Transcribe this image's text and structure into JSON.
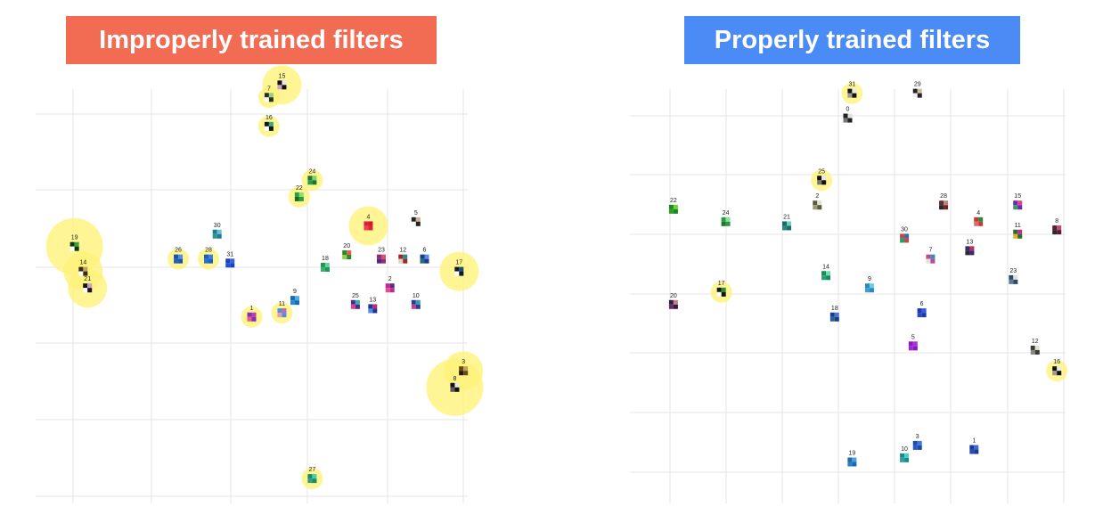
{
  "colors": {
    "banner_left": "#F26B53",
    "banner_right": "#4A8BF5",
    "highlight": "#FFF37A",
    "grid": "#E4E4E4"
  },
  "banners": {
    "left": "Improperly trained filters",
    "right": "Properly trained filters"
  },
  "chart_data": [
    {
      "type": "scatter",
      "title": "Improperly trained filters",
      "grid": true,
      "xlim": [
        0,
        100
      ],
      "ylim": [
        0,
        100
      ],
      "points": [
        {
          "label": "15",
          "x": 57,
          "y": 101,
          "highlight": 2,
          "colors": [
            "#111111",
            "#e8e8e8",
            "#d0a0c0"
          ]
        },
        {
          "label": "7",
          "x": 54,
          "y": 98,
          "highlight": 1,
          "colors": [
            "#223322",
            "#99cc88",
            "#ffffff"
          ]
        },
        {
          "label": "16",
          "x": 54,
          "y": 91,
          "highlight": 1,
          "colors": [
            "#0b1a1a",
            "#3aa880",
            "#ffffff"
          ]
        },
        {
          "label": "24",
          "x": 64,
          "y": 78,
          "highlight": 1,
          "colors": [
            "#1a7a2a",
            "#7ad46a",
            "#2a9a50"
          ]
        },
        {
          "label": "22",
          "x": 61,
          "y": 74,
          "highlight": 1,
          "colors": [
            "#2aa040",
            "#8fe070",
            "#1a6a2a"
          ]
        },
        {
          "label": "30",
          "x": 42,
          "y": 65,
          "highlight": 0,
          "colors": [
            "#1a7a9a",
            "#6ac0d0",
            "#2a9a80"
          ]
        },
        {
          "label": "4",
          "x": 77,
          "y": 67,
          "highlight": 2,
          "colors": [
            "#e0203a",
            "#d01a30",
            "#f04050"
          ]
        },
        {
          "label": "5",
          "x": 88,
          "y": 68,
          "highlight": 0,
          "colors": [
            "#222222",
            "#c8b090",
            "#ffffff"
          ]
        },
        {
          "label": "19",
          "x": 9,
          "y": 62,
          "highlight": 3,
          "colors": [
            "#0a3a10",
            "#3aa040",
            "#ffffff"
          ]
        },
        {
          "label": "14",
          "x": 11,
          "y": 56,
          "highlight": 2,
          "colors": [
            "#3a2a10",
            "#c0a060",
            "#ffffff"
          ]
        },
        {
          "label": "21",
          "x": 12,
          "y": 52,
          "highlight": 2,
          "colors": [
            "#220a22",
            "#c0a0c0",
            "#ffffff"
          ]
        },
        {
          "label": "26",
          "x": 33,
          "y": 59,
          "highlight": 1,
          "colors": [
            "#1a50b0",
            "#4a90e0",
            "#2060c0"
          ]
        },
        {
          "label": "28",
          "x": 40,
          "y": 59,
          "highlight": 1,
          "colors": [
            "#1a60c0",
            "#3a80e0",
            "#2a70d0"
          ]
        },
        {
          "label": "31",
          "x": 45,
          "y": 58,
          "highlight": 0,
          "colors": [
            "#1a40c0",
            "#3a60e0",
            "#2050d0"
          ]
        },
        {
          "label": "18",
          "x": 67,
          "y": 57,
          "highlight": 0,
          "colors": [
            "#1a9a50",
            "#6ad0a0",
            "#3ab070"
          ]
        },
        {
          "label": "20",
          "x": 72,
          "y": 60,
          "highlight": 0,
          "colors": [
            "#2a8a2a",
            "#e06040",
            "#90d050"
          ]
        },
        {
          "label": "23",
          "x": 80,
          "y": 59,
          "highlight": 0,
          "colors": [
            "#9a2a6a",
            "#d05080",
            "#4a2a8a"
          ]
        },
        {
          "label": "12",
          "x": 85,
          "y": 59,
          "highlight": 0,
          "colors": [
            "#9a2a2a",
            "#2a8a8a",
            "#e0d0c0"
          ]
        },
        {
          "label": "6",
          "x": 90,
          "y": 59,
          "highlight": 0,
          "colors": [
            "#1a3a9a",
            "#5a8ae0",
            "#2a6a6a"
          ]
        },
        {
          "label": "17",
          "x": 98,
          "y": 56,
          "highlight": 2,
          "colors": [
            "#0a1a2a",
            "#2a4a6a",
            "#ffffff"
          ]
        },
        {
          "label": "2",
          "x": 82,
          "y": 52,
          "highlight": 0,
          "colors": [
            "#c02a8a",
            "#5a2a8a",
            "#e05090"
          ]
        },
        {
          "label": "9",
          "x": 60,
          "y": 49,
          "highlight": 0,
          "colors": [
            "#1a6ab0",
            "#4ab0e0",
            "#2a8ac0"
          ]
        },
        {
          "label": "25",
          "x": 74,
          "y": 48,
          "highlight": 0,
          "colors": [
            "#4a2a9a",
            "#3ab0a0",
            "#e04080"
          ]
        },
        {
          "label": "13",
          "x": 78,
          "y": 47,
          "highlight": 0,
          "colors": [
            "#1a3a9a",
            "#c02a7a",
            "#5a8ae0"
          ]
        },
        {
          "label": "10",
          "x": 88,
          "y": 48,
          "highlight": 0,
          "colors": [
            "#2a3a9a",
            "#3a9ab0",
            "#c04090"
          ]
        },
        {
          "label": "1",
          "x": 50,
          "y": 45,
          "highlight": 1,
          "colors": [
            "#8a2ac0",
            "#c040a0",
            "#e06080"
          ]
        },
        {
          "label": "11",
          "x": 57,
          "y": 46,
          "highlight": 1,
          "colors": [
            "#5a8ae0",
            "#c06ab0",
            "#e0a0a0"
          ]
        },
        {
          "label": "3",
          "x": 99,
          "y": 32,
          "highlight": 2,
          "colors": [
            "#6a4a1a",
            "#c0a060",
            "#2a1a0a"
          ]
        },
        {
          "label": "8",
          "x": 97,
          "y": 28,
          "highlight": 3,
          "colors": [
            "#111111",
            "#e8e8e8",
            "#5a5a5a"
          ]
        },
        {
          "label": "27",
          "x": 64,
          "y": 6,
          "highlight": 1,
          "colors": [
            "#1a8a6a",
            "#4ad0a0",
            "#2aa080"
          ]
        }
      ]
    },
    {
      "type": "scatter",
      "title": "Properly trained filters",
      "grid": true,
      "xlim": [
        0,
        100
      ],
      "ylim": [
        0,
        100
      ],
      "points": [
        {
          "label": "31",
          "x": 51,
          "y": 99,
          "highlight": 1,
          "colors": [
            "#111111",
            "#e8e8e8",
            "#999999"
          ]
        },
        {
          "label": "29",
          "x": 66,
          "y": 99,
          "highlight": 0,
          "colors": [
            "#222222",
            "#c8c0a0",
            "#f0f0f0"
          ]
        },
        {
          "label": "0",
          "x": 50,
          "y": 93,
          "highlight": 0,
          "colors": [
            "#222222",
            "#e0e0e0",
            "#777777"
          ]
        },
        {
          "label": "25",
          "x": 44,
          "y": 78,
          "highlight": 1,
          "colors": [
            "#111111",
            "#e8e8e8",
            "#777777"
          ]
        },
        {
          "label": "22",
          "x": 10,
          "y": 71,
          "highlight": 0,
          "colors": [
            "#1a8a1a",
            "#6ad040",
            "#2aa020"
          ]
        },
        {
          "label": "24",
          "x": 22,
          "y": 68,
          "highlight": 0,
          "colors": [
            "#2a9a40",
            "#8ae0a0",
            "#1a7a2a"
          ]
        },
        {
          "label": "21",
          "x": 36,
          "y": 67,
          "highlight": 0,
          "colors": [
            "#1a6a6a",
            "#6ad0c0",
            "#2a8a7a"
          ]
        },
        {
          "label": "2",
          "x": 43,
          "y": 72,
          "highlight": 0,
          "colors": [
            "#5a5a3a",
            "#e0e0d0",
            "#9a9a7a"
          ]
        },
        {
          "label": "28",
          "x": 72,
          "y": 72,
          "highlight": 0,
          "colors": [
            "#6a2a2a",
            "#c08080",
            "#2a2a2a"
          ]
        },
        {
          "label": "4",
          "x": 80,
          "y": 68,
          "highlight": 0,
          "colors": [
            "#c03a3a",
            "#2a8a3a",
            "#e06a6a"
          ]
        },
        {
          "label": "15",
          "x": 89,
          "y": 72,
          "highlight": 0,
          "colors": [
            "#6a2ab0",
            "#e04090",
            "#3a9a6a"
          ]
        },
        {
          "label": "11",
          "x": 89,
          "y": 65,
          "highlight": 0,
          "colors": [
            "#2a6a2a",
            "#c02a8a",
            "#e0b030"
          ]
        },
        {
          "label": "8",
          "x": 98,
          "y": 66,
          "highlight": 0,
          "colors": [
            "#5a1a3a",
            "#c04a6a",
            "#2a2a2a"
          ]
        },
        {
          "label": "30",
          "x": 63,
          "y": 64,
          "highlight": 0,
          "colors": [
            "#c04a4a",
            "#3a6aa0",
            "#2aa05a"
          ]
        },
        {
          "label": "7",
          "x": 69,
          "y": 59,
          "highlight": 0,
          "colors": [
            "#c04a8a",
            "#3a8ac0",
            "#e0e0e0"
          ]
        },
        {
          "label": "13",
          "x": 78,
          "y": 61,
          "highlight": 0,
          "colors": [
            "#3a2a6a",
            "#c02a6a",
            "#2a2a2a"
          ]
        },
        {
          "label": "23",
          "x": 88,
          "y": 54,
          "highlight": 0,
          "colors": [
            "#2a4a6a",
            "#e0e0e0",
            "#5a7a9a"
          ]
        },
        {
          "label": "14",
          "x": 45,
          "y": 55,
          "highlight": 0,
          "colors": [
            "#1a8a5a",
            "#6ae0b0",
            "#2aa070"
          ]
        },
        {
          "label": "9",
          "x": 55,
          "y": 52,
          "highlight": 0,
          "colors": [
            "#2a8ac0",
            "#6ad0e0",
            "#3aa0d0"
          ]
        },
        {
          "label": "17",
          "x": 21,
          "y": 51,
          "highlight": 1,
          "colors": [
            "#0a1a0a",
            "#2a8a3a",
            "#ffffff"
          ]
        },
        {
          "label": "20",
          "x": 10,
          "y": 48,
          "highlight": 0,
          "colors": [
            "#3a1a3a",
            "#c0808a",
            "#6a2a6a"
          ]
        },
        {
          "label": "18",
          "x": 47,
          "y": 45,
          "highlight": 0,
          "colors": [
            "#1a3a8a",
            "#4a7ad0",
            "#2a5aa0"
          ]
        },
        {
          "label": "6",
          "x": 67,
          "y": 46,
          "highlight": 0,
          "colors": [
            "#1a3ab0",
            "#3a5ae0",
            "#2a4ac0"
          ]
        },
        {
          "label": "5",
          "x": 65,
          "y": 38,
          "highlight": 0,
          "colors": [
            "#8a1ac0",
            "#b030e0",
            "#9a2ad0"
          ]
        },
        {
          "label": "12",
          "x": 93,
          "y": 37,
          "highlight": 0,
          "colors": [
            "#3a3a3a",
            "#e0e0d0",
            "#8a8a7a"
          ]
        },
        {
          "label": "16",
          "x": 98,
          "y": 32,
          "highlight": 1,
          "colors": [
            "#111111",
            "#e8e8e8",
            "#9a9a9a"
          ]
        },
        {
          "label": "3",
          "x": 66,
          "y": 14,
          "highlight": 0,
          "colors": [
            "#1a4ab0",
            "#3a7ae0",
            "#2a5ac0"
          ]
        },
        {
          "label": "1",
          "x": 79,
          "y": 13,
          "highlight": 0,
          "colors": [
            "#1a3a9a",
            "#3a6ad0",
            "#2a4ab0"
          ]
        },
        {
          "label": "19",
          "x": 51,
          "y": 10,
          "highlight": 0,
          "colors": [
            "#1a6ab0",
            "#4aa0e0",
            "#2a80c0"
          ]
        },
        {
          "label": "10",
          "x": 63,
          "y": 11,
          "highlight": 0,
          "colors": [
            "#1a8a8a",
            "#4ad0c0",
            "#2aa0a0"
          ]
        }
      ]
    }
  ]
}
